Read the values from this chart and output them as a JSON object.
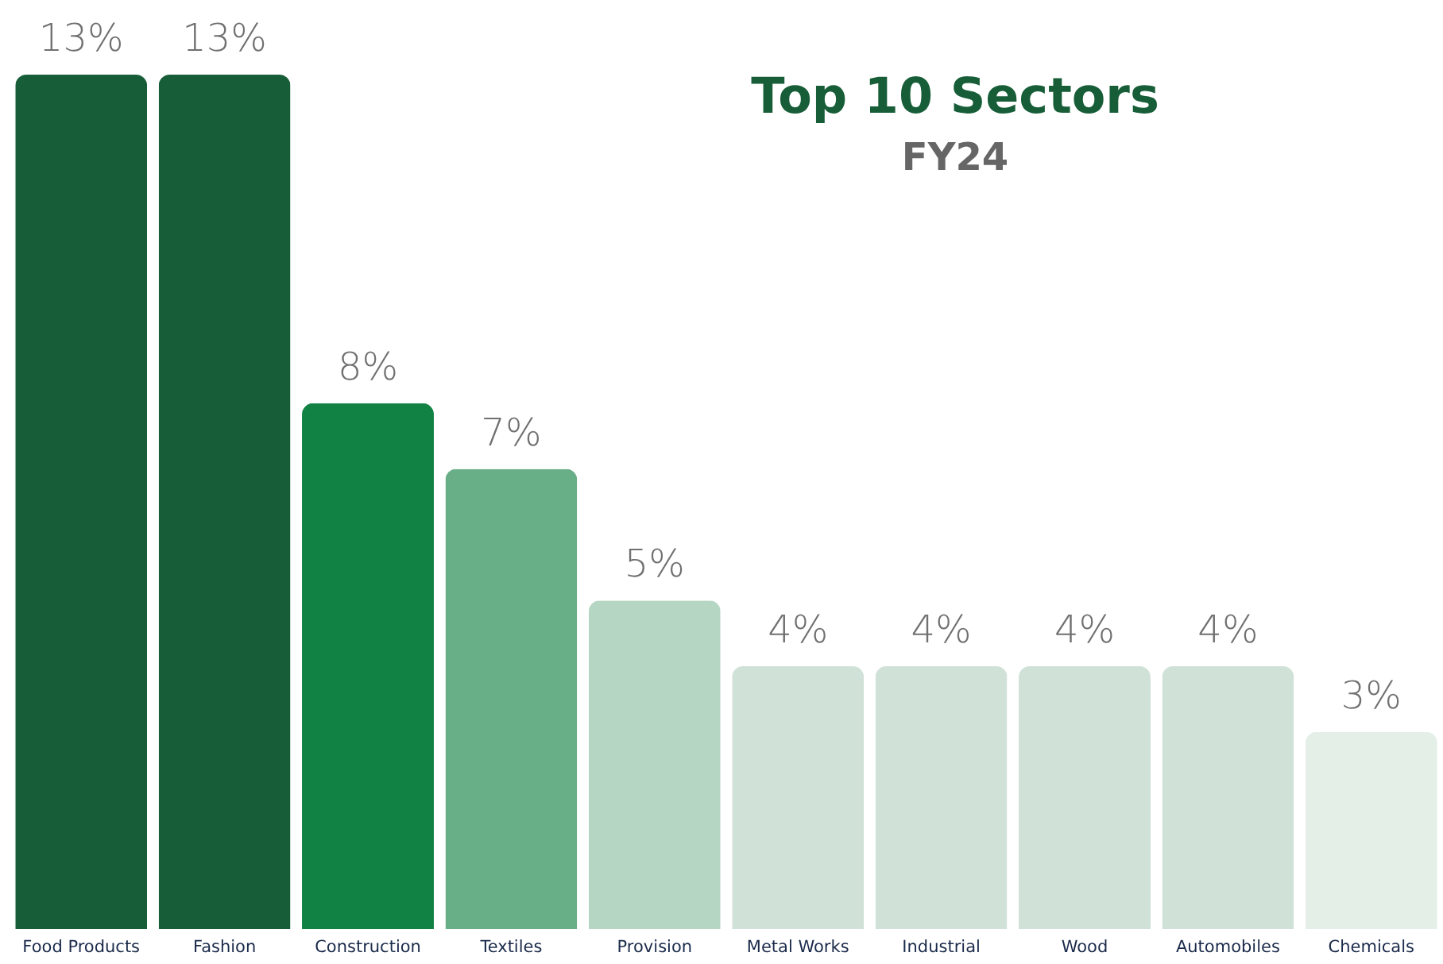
{
  "chart_data": {
    "type": "bar",
    "title": "Top 10 Sectors",
    "subtitle": "FY24",
    "categories": [
      "Food Products",
      "Fashion",
      "Construction",
      "Textiles",
      "Provision",
      "Metal Works",
      "Industrial",
      "Wood",
      "Automobiles",
      "Chemicals"
    ],
    "values": [
      13,
      13,
      8,
      7,
      5,
      4,
      4,
      4,
      4,
      3
    ],
    "colors": [
      "#175e38",
      "#175e38",
      "#128144",
      "#68ae86",
      "#b4d6c2",
      "#d0e1d8",
      "#d0e1d8",
      "#d0e1d8",
      "#d0e1d8",
      "#e4efe8"
    ],
    "value_labels": [
      "13%",
      "13%",
      "8%",
      "7%",
      "5%",
      "4%",
      "4%",
      "4%",
      "4%",
      "3%"
    ]
  }
}
